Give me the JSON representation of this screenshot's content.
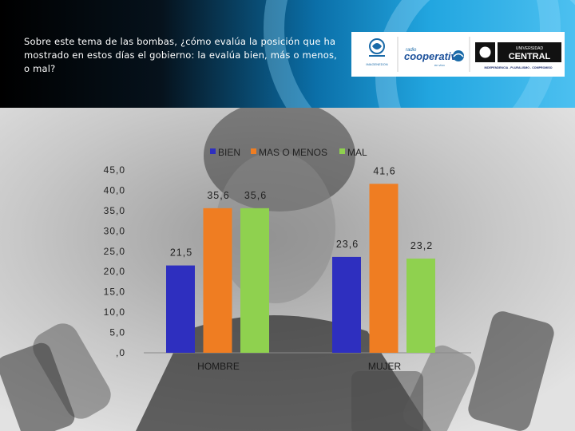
{
  "question": "Sobre este tema de las bombas, ¿cómo evalúa la posición que ha mostrado en estos días el gobierno: la evalúa bien, más o menos, o mal?",
  "logos": {
    "left_label": "IMAGENEDON",
    "radio_small": "radio",
    "radio_name": "cooperativa",
    "radio_sub": "en vivo",
    "univ_top": "UNIVERSIDAD",
    "univ_name": "CENTRAL",
    "univ_motto": "INDEPENDENCIA - PLURALISMO - COMPROMISO"
  },
  "colors": {
    "bien": "#2e2fbf",
    "mas_o_menos": "#ef7d22",
    "mal": "#8fd14f"
  },
  "chart_data": {
    "type": "bar",
    "categories": [
      "HOMBRE",
      "MUJER"
    ],
    "series": [
      {
        "name": "BIEN",
        "values": [
          21.5,
          23.6
        ],
        "labels": [
          "21,5",
          "23,6"
        ]
      },
      {
        "name": "MAS O MENOS",
        "values": [
          35.6,
          41.6
        ],
        "labels": [
          "35,6",
          "41,6"
        ]
      },
      {
        "name": "MAL",
        "values": [
          35.6,
          23.2
        ],
        "labels": [
          "35,6",
          "23,2"
        ]
      }
    ],
    "ylim": [
      0,
      45
    ],
    "yticks": [
      0,
      5,
      10,
      15,
      20,
      25,
      30,
      35,
      40,
      45
    ],
    "ytick_labels": [
      ",0",
      "5,0",
      "10,0",
      "15,0",
      "20,0",
      "25,0",
      "30,0",
      "35,0",
      "40,0",
      "45,0"
    ],
    "legend_position": "top",
    "grid": false
  }
}
